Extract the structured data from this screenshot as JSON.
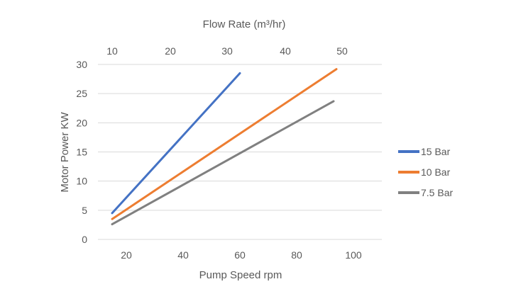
{
  "chart_data": {
    "type": "line",
    "xlabel": "Pump Speed rpm",
    "ylabel": "Motor Power KW",
    "x2label": "Flow Rate (m³/hr)",
    "xlim": [
      10,
      110
    ],
    "ylim": [
      0,
      30
    ],
    "x_ticks": [
      20,
      40,
      60,
      80,
      100
    ],
    "y_ticks": [
      0,
      5,
      10,
      15,
      20,
      25,
      30
    ],
    "x2_ticks": [
      10,
      20,
      30,
      40,
      50
    ],
    "x2_tick_positions": [
      15,
      35.5,
      55.5,
      76,
      96
    ],
    "grid": "horizontal",
    "legend_position": "right",
    "series": [
      {
        "name": "15 Bar",
        "color": "#4472C4",
        "points": [
          [
            15,
            4.5
          ],
          [
            60,
            28.5
          ]
        ]
      },
      {
        "name": "10 Bar",
        "color": "#ED7D31",
        "points": [
          [
            15,
            3.5
          ],
          [
            94,
            29.2
          ]
        ]
      },
      {
        "name": "7.5 Bar",
        "color": "#808080",
        "points": [
          [
            15,
            2.6
          ],
          [
            93,
            23.7
          ]
        ]
      }
    ]
  }
}
